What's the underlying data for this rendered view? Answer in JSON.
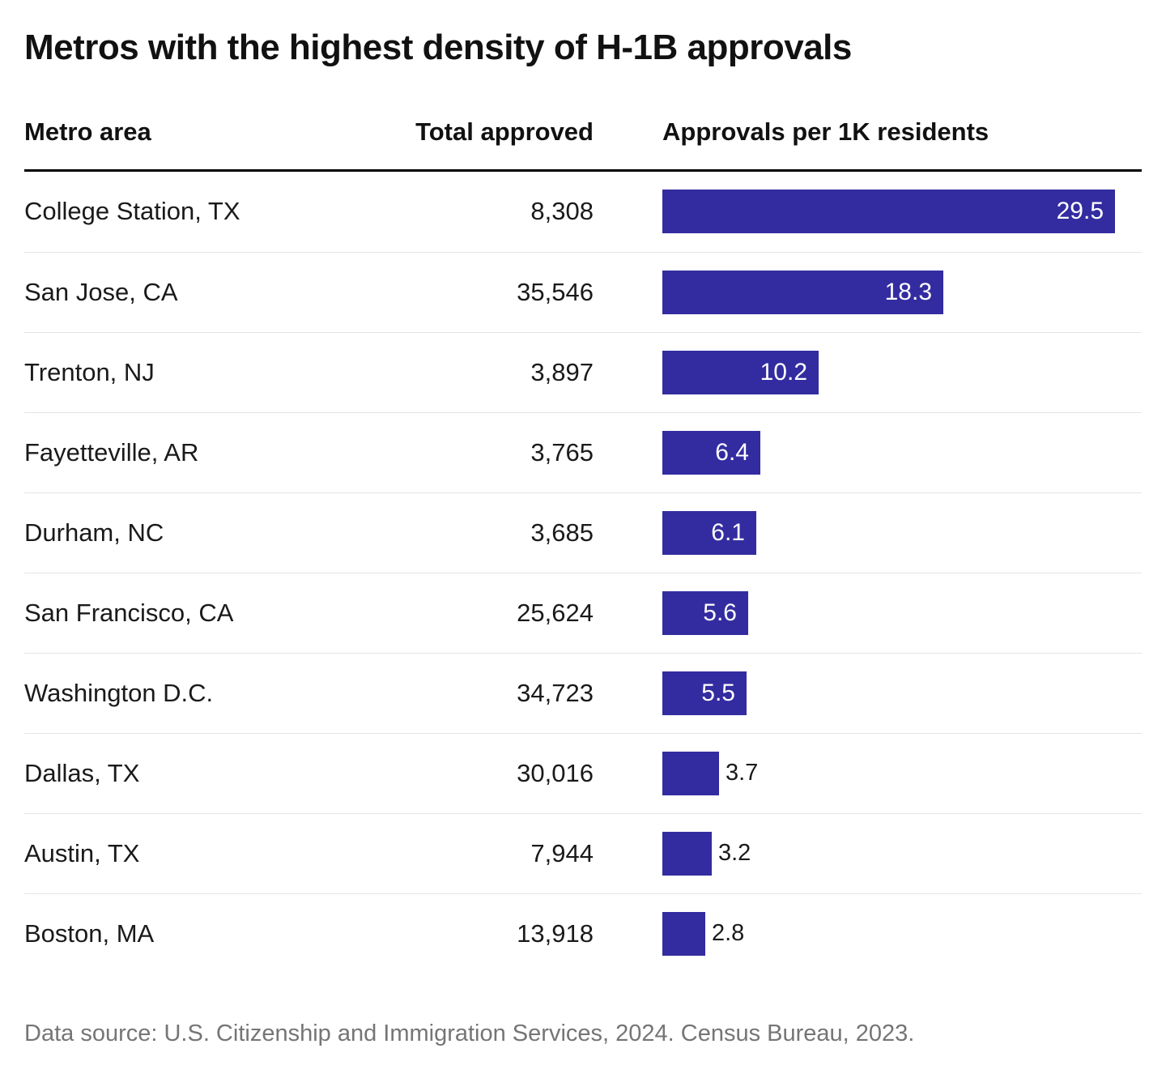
{
  "title": "Metros with the highest density of H-1B approvals",
  "columns": {
    "metro": "Metro area",
    "total": "Total approved",
    "rate": "Approvals per 1K residents"
  },
  "table": {
    "rows": [
      {
        "metro": "College Station, TX",
        "total": "8,308",
        "rate": 29.5,
        "rate_label": "29.5"
      },
      {
        "metro": "San Jose, CA",
        "total": "35,546",
        "rate": 18.3,
        "rate_label": "18.3"
      },
      {
        "metro": "Trenton, NJ",
        "total": "3,897",
        "rate": 10.2,
        "rate_label": "10.2"
      },
      {
        "metro": "Fayetteville, AR",
        "total": "3,765",
        "rate": 6.4,
        "rate_label": "6.4"
      },
      {
        "metro": "Durham, NC",
        "total": "3,685",
        "rate": 6.1,
        "rate_label": "6.1"
      },
      {
        "metro": "San Francisco, CA",
        "total": "25,624",
        "rate": 5.6,
        "rate_label": "5.6"
      },
      {
        "metro": "Washington D.C.",
        "total": "34,723",
        "rate": 5.5,
        "rate_label": "5.5"
      },
      {
        "metro": "Dallas, TX",
        "total": "30,016",
        "rate": 3.7,
        "rate_label": "3.7"
      },
      {
        "metro": "Austin, TX",
        "total": "7,944",
        "rate": 3.2,
        "rate_label": "3.2"
      },
      {
        "metro": "Boston, MA",
        "total": "13,918",
        "rate": 2.8,
        "rate_label": "2.8"
      }
    ]
  },
  "source": "Data source: U.S. Citizenship and Immigration Services, 2024. Census Bureau, 2023.",
  "colors": {
    "bar": "#332CA0",
    "bar_label_inside": "#ffffff",
    "bar_label_outside": "#1a1a1a",
    "header_rule": "#000000",
    "row_separator": "#e4e4e4",
    "source_text": "#757575"
  },
  "chart_data": {
    "type": "bar",
    "orientation": "horizontal",
    "title": "Metros with the highest density of H-1B approvals",
    "categories": [
      "College Station, TX",
      "San Jose, CA",
      "Trenton, NJ",
      "Fayetteville, AR",
      "Durham, NC",
      "San Francisco, CA",
      "Washington D.C.",
      "Dallas, TX",
      "Austin, TX",
      "Boston, MA"
    ],
    "series": [
      {
        "name": "Total approved",
        "values": [
          8308,
          35546,
          3897,
          3765,
          3685,
          25624,
          34723,
          30016,
          7944,
          13918
        ]
      },
      {
        "name": "Approvals per 1K residents",
        "values": [
          29.5,
          18.3,
          10.2,
          6.4,
          6.1,
          5.6,
          5.5,
          3.7,
          3.2,
          2.8
        ]
      }
    ],
    "xlabel": "Approvals per 1K residents",
    "xlim": [
      0,
      29.5
    ],
    "grid": false,
    "legend_position": "none",
    "bar_color": "#332CA0",
    "value_labels": true,
    "source": "Data source: U.S. Citizenship and Immigration Services, 2024. Census Bureau, 2023."
  }
}
